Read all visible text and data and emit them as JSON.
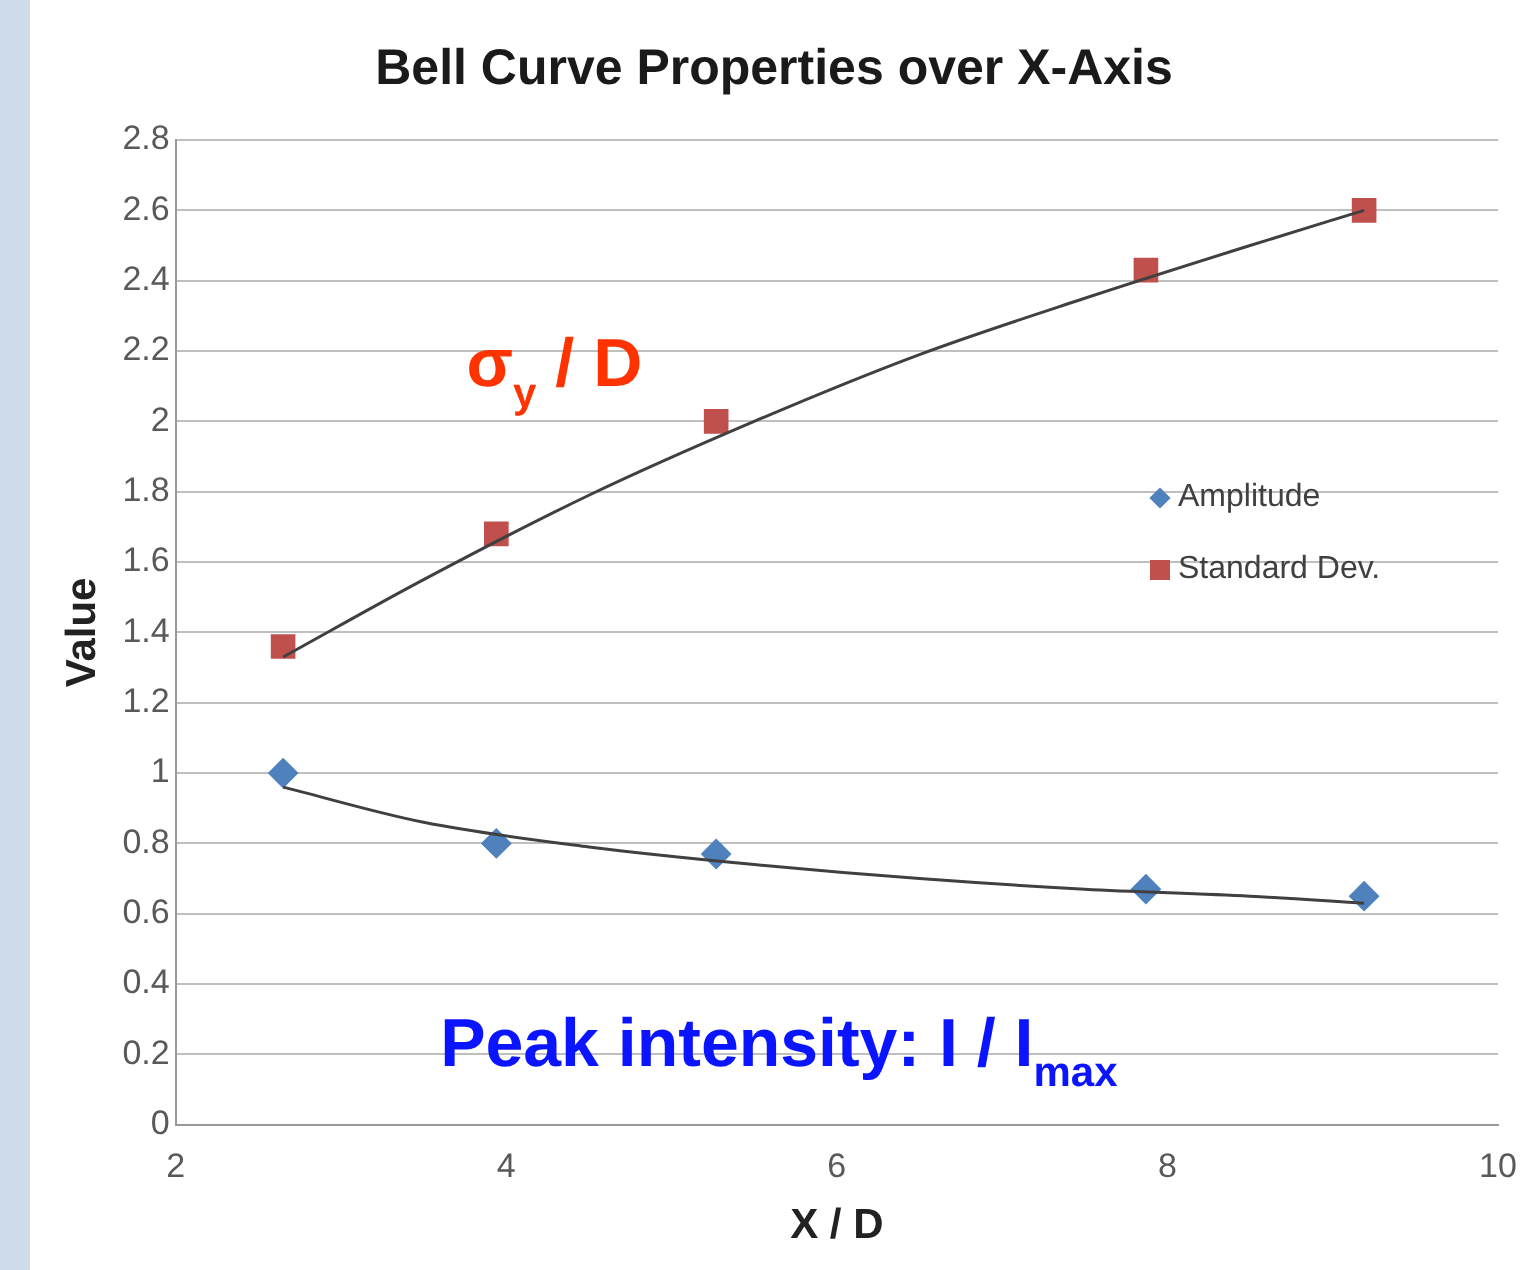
{
  "chart_data": {
    "type": "line",
    "title": "Bell Curve Properties over X-Axis",
    "xlabel": "X / D",
    "ylabel": "Value",
    "xlim": [
      2,
      10
    ],
    "xticks": [
      2,
      4,
      6,
      8,
      10
    ],
    "ylim": [
      0,
      2.8
    ],
    "yticks": [
      0,
      0.2,
      0.4,
      0.6,
      0.8,
      1,
      1.2,
      1.4,
      1.6,
      1.8,
      2,
      2.2,
      2.4,
      2.6,
      2.8
    ],
    "grid": "y",
    "legend": "right",
    "series": [
      {
        "name": "Amplitude",
        "type": "scatter",
        "marker": "diamond",
        "color": "#4f81bd",
        "x": [
          2.65,
          3.94,
          5.27,
          7.87,
          9.19
        ],
        "values": [
          1.0,
          0.8,
          0.77,
          0.67,
          0.65
        ]
      },
      {
        "name": "Standard Dev.",
        "type": "scatter",
        "marker": "square",
        "color": "#c0504d",
        "x": [
          2.65,
          3.94,
          5.27,
          7.87,
          9.19
        ],
        "values": [
          1.36,
          1.68,
          2.0,
          2.43,
          2.6
        ]
      },
      {
        "type": "line",
        "marker": "none",
        "color": "#404040",
        "x": [
          2.65,
          3.5,
          4.5,
          5.5,
          6.5,
          7.5,
          8.5,
          9.19
        ],
        "values": [
          0.96,
          0.86,
          0.79,
          0.74,
          0.7,
          0.67,
          0.65,
          0.63
        ]
      },
      {
        "type": "line",
        "marker": "none",
        "color": "#404040",
        "x": [
          2.65,
          3.5,
          4.5,
          5.5,
          6.5,
          7.5,
          8.5,
          9.19
        ],
        "values": [
          1.33,
          1.55,
          1.79,
          2.0,
          2.19,
          2.35,
          2.5,
          2.6
        ]
      }
    ],
    "annotations": [
      "σ$_{y}$ / D",
      "Peak intensity: I / I$_{max}$"
    ]
  }
}
